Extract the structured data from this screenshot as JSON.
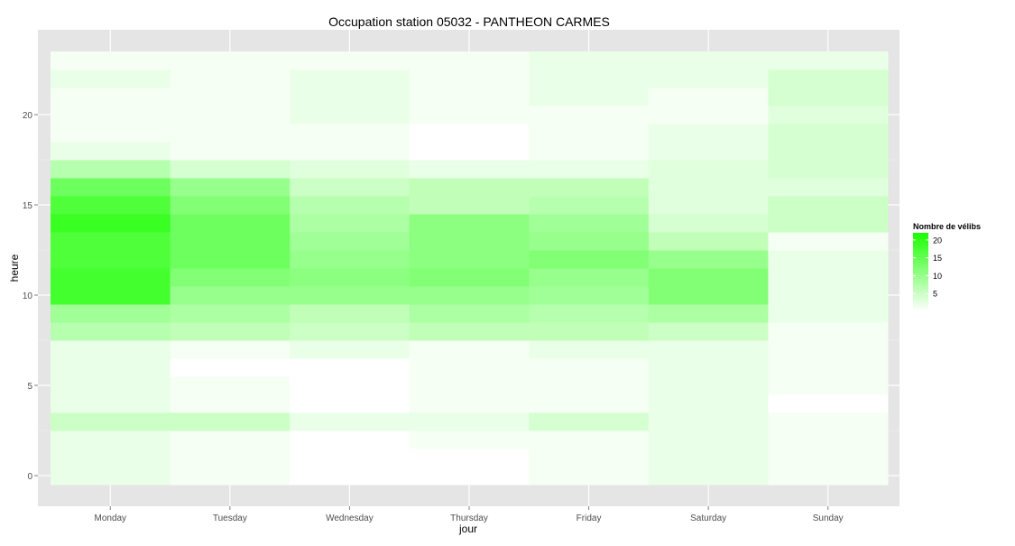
{
  "chart_data": {
    "type": "heatmap",
    "title": "Occupation station 05032 - PANTHEON CARMES",
    "xlabel": "jour",
    "ylabel": "heure",
    "x_categories": [
      "Monday",
      "Tuesday",
      "Wednesday",
      "Thursday",
      "Friday",
      "Saturday",
      "Sunday"
    ],
    "y_range": [
      0,
      23
    ],
    "y_ticks": [
      0,
      5,
      10,
      15,
      20
    ],
    "grid": true,
    "legend": {
      "title": "Nombre de vélibs",
      "placement": "right",
      "ticks": [
        5,
        10,
        15,
        20
      ],
      "min": 0,
      "max": 22,
      "low_color": "#ffffff",
      "high_color": "#1aff00"
    },
    "colors": {
      "panel_background": "#e5e5e5",
      "grid_line": "#ffffff"
    },
    "values": [
      [
        2,
        1,
        0,
        0,
        1,
        2,
        1
      ],
      [
        2,
        1,
        0,
        0,
        1,
        2,
        1
      ],
      [
        2,
        1,
        0,
        1,
        1,
        2,
        1
      ],
      [
        5,
        5,
        2,
        2,
        4,
        2,
        1
      ],
      [
        2,
        1,
        0,
        1,
        1,
        2,
        0
      ],
      [
        2,
        1,
        0,
        1,
        1,
        2,
        1
      ],
      [
        2,
        0,
        0,
        1,
        1,
        2,
        1
      ],
      [
        2,
        1,
        2,
        1,
        2,
        2,
        1
      ],
      [
        7,
        6,
        5,
        6,
        6,
        5,
        1
      ],
      [
        9,
        8,
        6,
        8,
        7,
        8,
        2
      ],
      [
        18,
        10,
        10,
        10,
        9,
        12,
        2
      ],
      [
        18,
        12,
        11,
        12,
        10,
        12,
        2
      ],
      [
        17,
        14,
        10,
        11,
        12,
        10,
        2
      ],
      [
        17,
        14,
        9,
        11,
        10,
        6,
        1
      ],
      [
        19,
        14,
        8,
        11,
        9,
        4,
        5
      ],
      [
        17,
        12,
        7,
        6,
        7,
        3,
        5
      ],
      [
        14,
        10,
        5,
        6,
        6,
        3,
        3
      ],
      [
        7,
        4,
        3,
        2,
        2,
        3,
        4
      ],
      [
        2,
        1,
        1,
        0,
        1,
        2,
        4
      ],
      [
        1,
        1,
        1,
        0,
        1,
        2,
        4
      ],
      [
        1,
        1,
        2,
        1,
        1,
        1,
        3
      ],
      [
        1,
        1,
        2,
        1,
        2,
        1,
        4
      ],
      [
        2,
        1,
        2,
        1,
        2,
        2,
        4
      ],
      [
        1,
        1,
        1,
        1,
        2,
        2,
        2
      ]
    ]
  }
}
